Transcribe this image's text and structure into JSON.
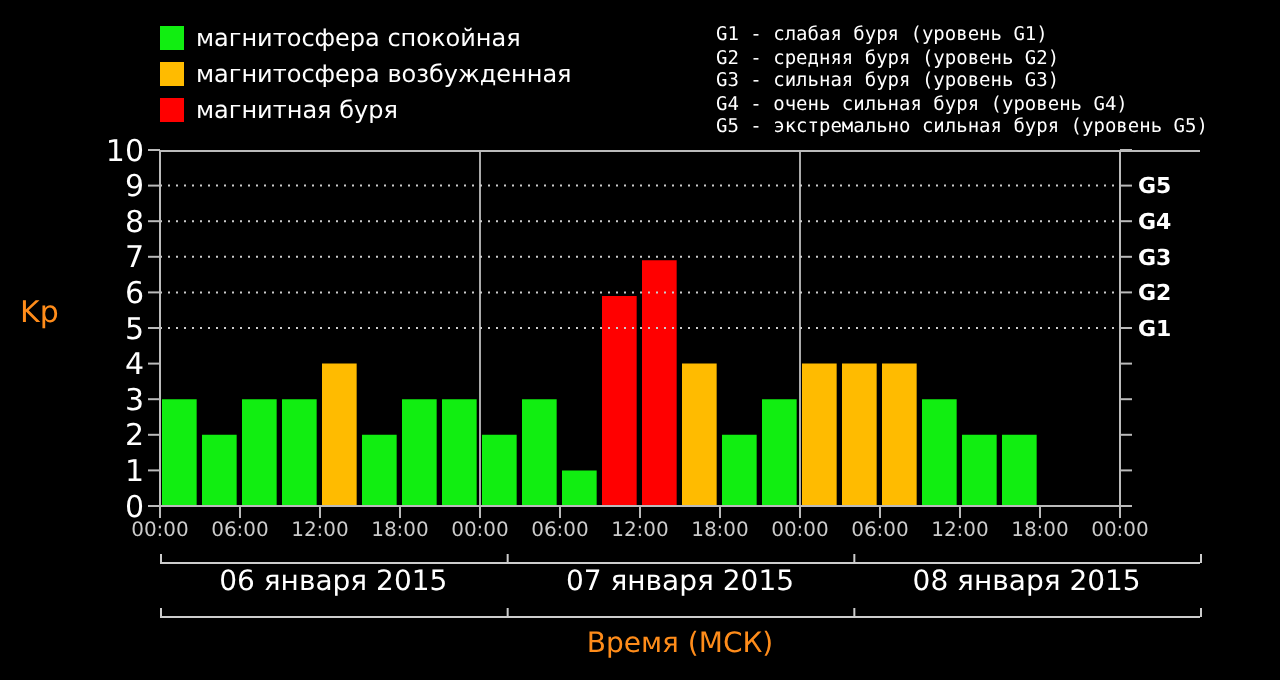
{
  "chart_data": {
    "type": "bar",
    "stacked": true,
    "x": [
      "2015-01-06T01:30",
      "2015-01-06T04:30",
      "2015-01-06T07:30",
      "2015-01-06T10:30",
      "2015-01-06T13:30",
      "2015-01-06T16:30",
      "2015-01-06T19:30",
      "2015-01-06T22:30",
      "2015-01-07T01:30",
      "2015-01-07T04:30",
      "2015-01-07T07:30",
      "2015-01-07T10:30",
      "2015-01-07T13:30",
      "2015-01-07T16:30",
      "2015-01-07T19:30",
      "2015-01-07T22:30",
      "2015-01-08T01:30",
      "2015-01-08T04:30",
      "2015-01-08T07:30",
      "2015-01-08T10:30",
      "2015-01-08T13:30",
      "2015-01-08T16:30"
    ],
    "series": [
      {
        "name": "магнитосфера спокойная",
        "color": "#11ee11",
        "values": [
          3,
          2,
          3,
          3,
          null,
          2,
          3,
          3,
          2,
          3,
          1,
          null,
          null,
          null,
          2,
          3,
          null,
          null,
          null,
          3,
          2,
          2
        ]
      },
      {
        "name": "магнитосфера возбужденная",
        "color": "#ffbb00",
        "values": [
          null,
          null,
          null,
          null,
          4,
          null,
          null,
          null,
          null,
          null,
          null,
          null,
          null,
          4,
          null,
          null,
          4,
          4,
          4,
          null,
          null,
          null
        ]
      },
      {
        "name": "магнитная буря",
        "color": "#ff0000",
        "values": [
          null,
          null,
          null,
          null,
          null,
          null,
          null,
          null,
          null,
          null,
          null,
          5.9,
          6.9,
          null,
          null,
          null,
          null,
          null,
          null,
          null,
          null,
          null
        ]
      }
    ],
    "xlim": [
      "2015-01-06T00:00",
      "2015-01-09T00:00"
    ],
    "xticks": [
      {
        "value": "2015-01-06T00:00",
        "label": "00:00"
      },
      {
        "value": "2015-01-06T06:00",
        "label": "06:00"
      },
      {
        "value": "2015-01-06T12:00",
        "label": "12:00"
      },
      {
        "value": "2015-01-06T18:00",
        "label": "18:00"
      },
      {
        "value": "2015-01-07T00:00",
        "label": "00:00"
      },
      {
        "value": "2015-01-07T06:00",
        "label": "06:00"
      },
      {
        "value": "2015-01-07T12:00",
        "label": "12:00"
      },
      {
        "value": "2015-01-07T18:00",
        "label": "18:00"
      },
      {
        "value": "2015-01-08T00:00",
        "label": "00:00"
      },
      {
        "value": "2015-01-08T06:00",
        "label": "06:00"
      },
      {
        "value": "2015-01-08T12:00",
        "label": "12:00"
      },
      {
        "value": "2015-01-08T18:00",
        "label": "18:00"
      },
      {
        "value": "2015-01-09T00:00",
        "label": "00:00"
      }
    ],
    "ylim": [
      0,
      10
    ],
    "yticks": [
      0,
      1,
      2,
      3,
      4,
      5,
      6,
      7,
      8,
      9,
      10
    ],
    "ylabel": "Kp",
    "xlabel": "Время (МСК)",
    "ref_lines": [
      {
        "axis": "x",
        "value": "2015-01-07T00:00",
        "color": "#aaaaaa",
        "line_style": "solid"
      },
      {
        "axis": "x",
        "value": "2015-01-08T00:00",
        "color": "#aaaaaa",
        "line_style": "solid"
      },
      {
        "axis": "y",
        "value": 5,
        "color": "#cccccc",
        "line_style": "dotted",
        "label": "G1"
      },
      {
        "axis": "y",
        "value": 6,
        "color": "#cccccc",
        "line_style": "dotted",
        "label": "G2"
      },
      {
        "axis": "y",
        "value": 7,
        "color": "#cccccc",
        "line_style": "dotted",
        "label": "G3"
      },
      {
        "axis": "y",
        "value": 8,
        "color": "#cccccc",
        "line_style": "dotted",
        "label": "G4"
      },
      {
        "axis": "y",
        "value": 9,
        "color": "#cccccc",
        "line_style": "dotted",
        "label": "G5"
      }
    ],
    "annotations": [
      "G1 - слабая буря (уровень G1)",
      "G2 - средняя буря (уровень G2)",
      "G3 - сильная буря (уровень G3)",
      "G4 - очень сильная буря (уровень G4)",
      "G5 - экстремально сильная буря (уровень G5)",
      "06 января 2015",
      "07 января 2015",
      "08 января 2015"
    ],
    "legend": "top left",
    "grid": false
  }
}
